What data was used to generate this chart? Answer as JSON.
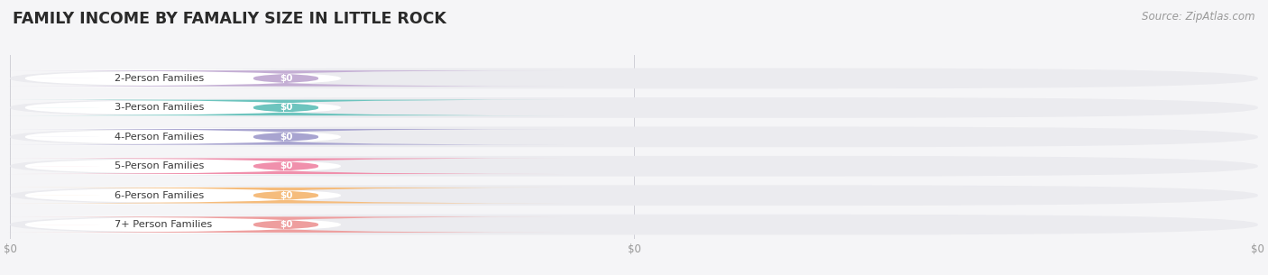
{
  "title": "FAMILY INCOME BY FAMALIY SIZE IN LITTLE ROCK",
  "source_text": "Source: ZipAtlas.com",
  "categories": [
    "2-Person Families",
    "3-Person Families",
    "4-Person Families",
    "5-Person Families",
    "6-Person Families",
    "7+ Person Families"
  ],
  "values": [
    0,
    0,
    0,
    0,
    0,
    0
  ],
  "bar_colors": [
    "#c4aed4",
    "#6dc4be",
    "#a8a4d0",
    "#f090ac",
    "#f5bc7c",
    "#ee9e9e"
  ],
  "bar_bg_color": "#ebebef",
  "label_bg_color": "#ffffff",
  "background_color": "#f5f5f7",
  "title_fontsize": 12.5,
  "source_fontsize": 8.5,
  "fig_width": 14.06,
  "fig_height": 3.05,
  "dpi": 100,
  "n_xticks": 3,
  "xtick_labels": [
    "$0",
    "$0",
    "$0"
  ]
}
